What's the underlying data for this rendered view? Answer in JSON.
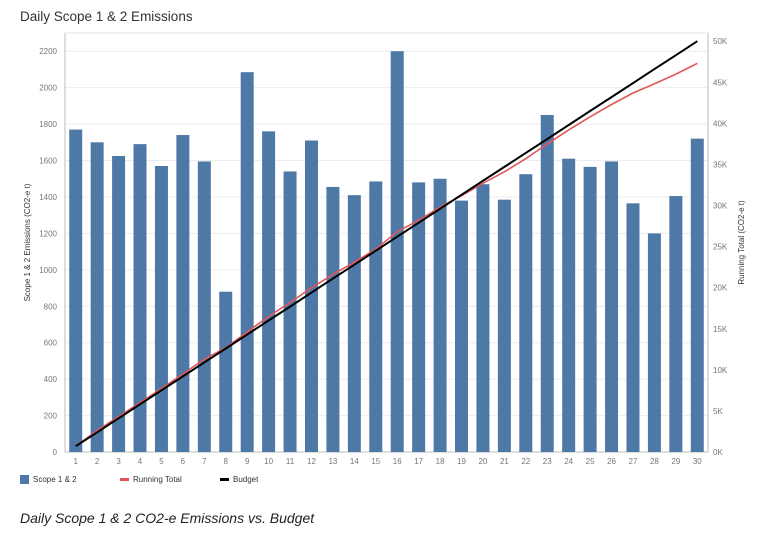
{
  "header": {
    "title": "Daily Scope 1 & 2 Emissions"
  },
  "caption": "Daily Scope 1 & 2 CO2-e Emissions vs. Budget",
  "legend": {
    "items": [
      {
        "label": "Scope 1 & 2",
        "color": "#4e79a7",
        "kind": "box"
      },
      {
        "label": "Running Total",
        "color": "#e15759",
        "kind": "line"
      },
      {
        "label": "Budget",
        "color": "#000000",
        "kind": "line"
      }
    ]
  },
  "chart_data": {
    "type": "bar",
    "title": "Daily Scope 1 & 2 Emissions",
    "xlabel": "",
    "ylabel": "Scope 1 & 2 Emissions (CO2-e t)",
    "y2label": "Running Total (CO2-e t)",
    "categories": [
      "1",
      "2",
      "3",
      "4",
      "5",
      "6",
      "7",
      "8",
      "9",
      "10",
      "11",
      "12",
      "13",
      "14",
      "15",
      "16",
      "17",
      "18",
      "19",
      "20",
      "21",
      "22",
      "23",
      "24",
      "25",
      "26",
      "27",
      "28",
      "29",
      "30"
    ],
    "ylim": [
      0,
      2300
    ],
    "y2lim": [
      0,
      51000
    ],
    "yticks": [
      0,
      200,
      400,
      600,
      800,
      1000,
      1200,
      1400,
      1600,
      1800,
      2000,
      2200
    ],
    "y2ticks": [
      0,
      5000,
      10000,
      15000,
      20000,
      25000,
      30000,
      35000,
      40000,
      45000,
      50000
    ],
    "y2ticklabels": [
      "0K",
      "5K",
      "10K",
      "15K",
      "20K",
      "25K",
      "30K",
      "35K",
      "40K",
      "45K",
      "50K"
    ],
    "grid": true,
    "legend_position": "bottom-left",
    "series": [
      {
        "name": "Scope 1 & 2",
        "type": "bar",
        "axis": "left",
        "color": "#4e79a7",
        "values": [
          1770,
          1700,
          1625,
          1690,
          1570,
          1740,
          1595,
          880,
          2085,
          1760,
          1540,
          1710,
          1455,
          1410,
          1485,
          2200,
          1480,
          1500,
          1380,
          1470,
          1385,
          1525,
          1850,
          1610,
          1565,
          1595,
          1365,
          1200,
          1405,
          1720
        ]
      },
      {
        "name": "Running Total",
        "type": "line",
        "axis": "right",
        "color": "#e15759",
        "values": [
          700,
          2600,
          4300,
          6000,
          7700,
          9500,
          11300,
          12700,
          14600,
          16500,
          18200,
          20000,
          21600,
          23100,
          24700,
          26800,
          28200,
          29800,
          31200,
          32700,
          34100,
          35700,
          37500,
          39200,
          40800,
          42300,
          43700,
          44800,
          46000,
          47300
        ]
      },
      {
        "name": "Budget",
        "type": "line",
        "axis": "right",
        "color": "#000000",
        "values": [
          700,
          2400,
          4100,
          5800,
          7500,
          9200,
          10900,
          12600,
          14300,
          16000,
          17700,
          19400,
          21100,
          22800,
          24500,
          26200,
          27900,
          29600,
          31300,
          33000,
          34700,
          36400,
          38100,
          39800,
          41500,
          43200,
          44900,
          46600,
          48300,
          50000
        ]
      }
    ]
  }
}
